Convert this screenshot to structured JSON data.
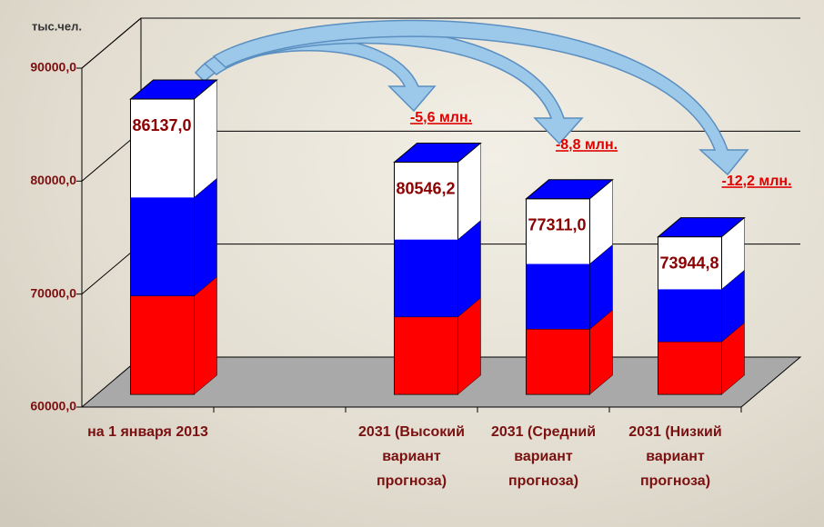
{
  "chart_data": {
    "type": "bar",
    "y_axis_label": "тыс.чел.",
    "categories": [
      "на 1 января 2013",
      null,
      "2031 (Высокий вариант прогноза)",
      "2031 (Средний вариант прогноза)",
      "2031 (Низкий вариант прогноза)"
    ],
    "values": [
      86137.0,
      null,
      80546.2,
      77311.0,
      73944.8
    ],
    "value_labels": [
      "86137,0",
      null,
      "80546,2",
      "77311,0",
      "73944,8"
    ],
    "ylim": [
      60000,
      90000
    ],
    "yticks": [
      {
        "value": 60000,
        "label": "60000,0"
      },
      {
        "value": 70000,
        "label": "70000,0"
      },
      {
        "value": 80000,
        "label": "80000,0"
      },
      {
        "value": 90000,
        "label": "90000,0"
      }
    ],
    "annotations": [
      "-5,6 млн.",
      "-8,8 млн.",
      "-12,2 млн."
    ],
    "colors": [
      "#ffffff",
      "#0000ff",
      "#ff0000"
    ],
    "grid": true
  }
}
